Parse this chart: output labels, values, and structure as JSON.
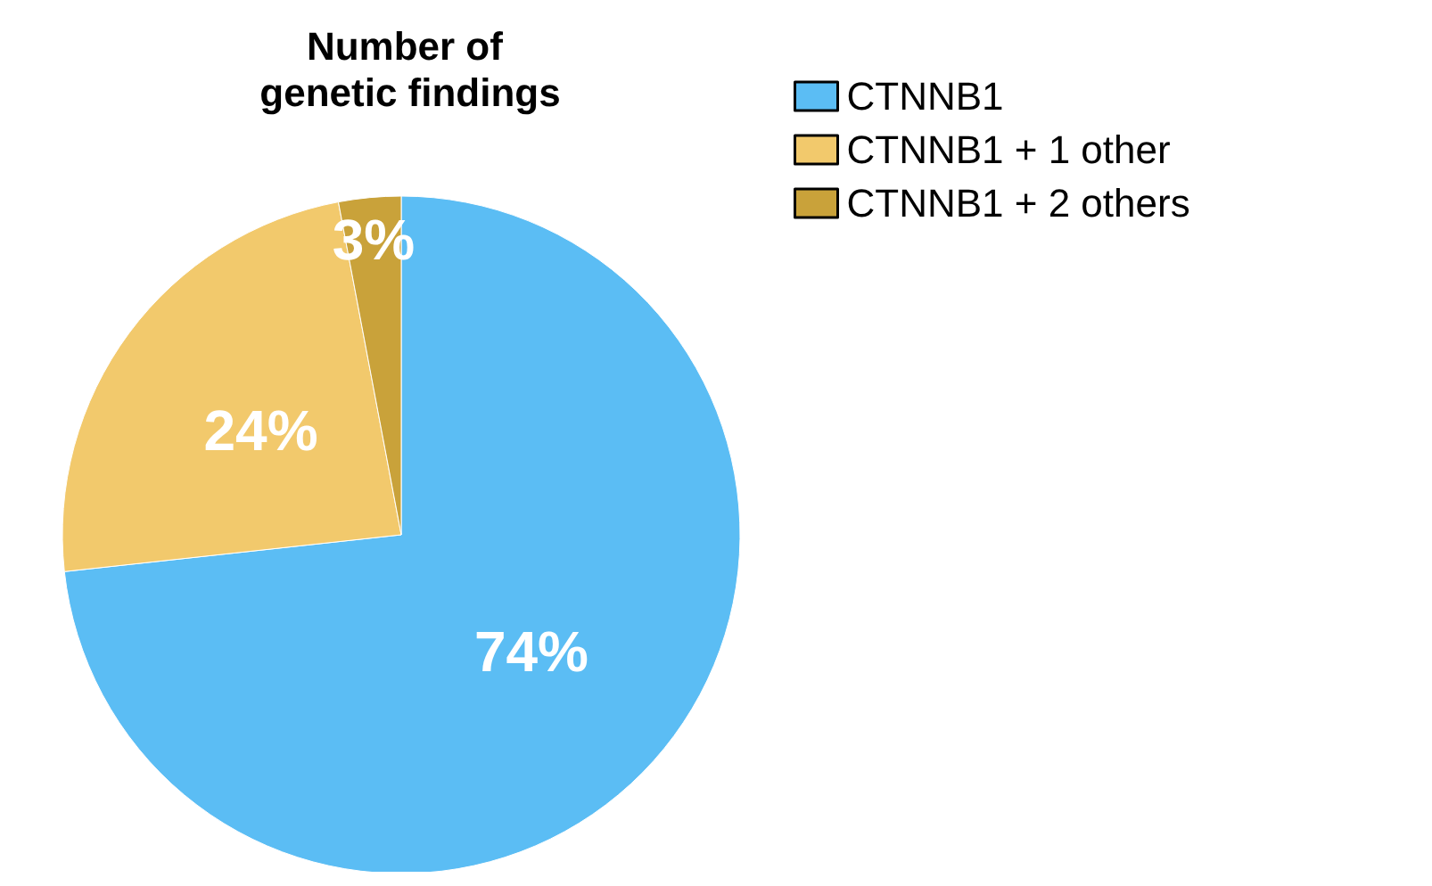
{
  "chart_data": {
    "type": "pie",
    "title": "Number of genetic findings",
    "categories": [
      "CTNNB1",
      "CTNNB1 + 1 other",
      "CTNNB1 + 2 others"
    ],
    "values": [
      74,
      24,
      3
    ],
    "colors": [
      "#5bbdf4",
      "#f2c96c",
      "#c9a23a"
    ],
    "value_labels": [
      "74%",
      "24%",
      "3%"
    ],
    "legend": "top right"
  }
}
